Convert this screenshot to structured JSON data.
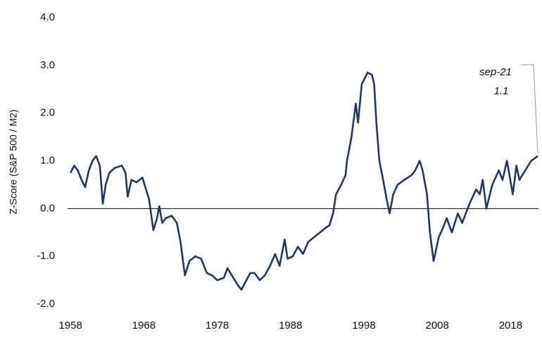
{
  "chart_data": {
    "type": "line",
    "y_label": "Z-Score (S&P 500 / M2)",
    "x": [
      1958.0,
      1958.5,
      1959.0,
      1959.5,
      1960.0,
      1960.5,
      1961.0,
      1961.5,
      1962.0,
      1962.4,
      1962.8,
      1963.3,
      1964.0,
      1965.0,
      1965.5,
      1965.8,
      1966.3,
      1967.0,
      1967.8,
      1968.3,
      1968.7,
      1969.3,
      1969.8,
      1970.1,
      1970.5,
      1971.0,
      1971.8,
      1972.5,
      1973.0,
      1973.6,
      1974.2,
      1975.0,
      1975.8,
      1976.6,
      1977.3,
      1978.0,
      1978.9,
      1979.4,
      1980.2,
      1980.8,
      1981.3,
      1981.8,
      1982.5,
      1983.1,
      1983.8,
      1984.5,
      1985.2,
      1985.9,
      1986.5,
      1987.2,
      1987.6,
      1988.3,
      1989.0,
      1989.7,
      1990.4,
      1991.2,
      1992.0,
      1992.8,
      1993.3,
      1993.8,
      1994.2,
      1994.9,
      1995.5,
      1995.7,
      1996.3,
      1996.9,
      1997.2,
      1997.7,
      1998.5,
      1999.1,
      1999.4,
      1999.7,
      2000.1,
      2000.5,
      2001.1,
      2001.5,
      2002.0,
      2002.6,
      2003.5,
      2004.5,
      2005.0,
      2005.6,
      2006.0,
      2006.6,
      2007.0,
      2007.5,
      2008.2,
      2008.8,
      2009.3,
      2010.0,
      2010.8,
      2011.4,
      2012.4,
      2013.3,
      2013.8,
      2014.2,
      2014.7,
      2015.5,
      2016.4,
      2016.9,
      2017.5,
      2018.3,
      2018.8,
      2019.2,
      2020.0,
      2020.8,
      2021.7
    ],
    "series": [
      {
        "name": "Z-Score",
        "color": "#1f3864",
        "values": [
          0.75,
          0.9,
          0.8,
          0.6,
          0.45,
          0.8,
          1.0,
          1.1,
          0.9,
          0.1,
          0.5,
          0.75,
          0.85,
          0.9,
          0.75,
          0.25,
          0.6,
          0.55,
          0.65,
          0.4,
          0.2,
          -0.45,
          -0.2,
          0.05,
          -0.3,
          -0.2,
          -0.15,
          -0.3,
          -0.7,
          -1.4,
          -1.1,
          -1.0,
          -1.05,
          -1.35,
          -1.4,
          -1.5,
          -1.45,
          -1.25,
          -1.45,
          -1.6,
          -1.7,
          -1.55,
          -1.35,
          -1.35,
          -1.5,
          -1.4,
          -1.2,
          -0.95,
          -1.2,
          -0.65,
          -1.05,
          -1.0,
          -0.8,
          -0.95,
          -0.7,
          -0.6,
          -0.5,
          -0.4,
          -0.35,
          -0.1,
          0.3,
          0.5,
          0.7,
          1.0,
          1.5,
          2.2,
          1.8,
          2.6,
          2.85,
          2.8,
          2.6,
          1.8,
          1.0,
          0.7,
          0.2,
          -0.1,
          0.3,
          0.5,
          0.6,
          0.7,
          0.8,
          1.0,
          0.8,
          0.3,
          -0.5,
          -1.1,
          -0.6,
          -0.4,
          -0.2,
          -0.5,
          -0.1,
          -0.3,
          0.1,
          0.4,
          0.3,
          0.6,
          0.0,
          0.5,
          0.8,
          0.6,
          1.0,
          0.3,
          0.9,
          0.6,
          0.8,
          1.0,
          1.1
        ]
      }
    ],
    "xlim": [
      1957.6,
      2021.8
    ],
    "xticks": [
      1958,
      1968,
      1978,
      1988,
      1998,
      2008,
      2018
    ],
    "ylim": [
      -2,
      4
    ],
    "yticks": [
      {
        "value": -2,
        "label": "-2.0"
      },
      {
        "value": -1,
        "label": "-1.0"
      },
      {
        "value": 0,
        "label": "0.0"
      },
      {
        "value": 1,
        "label": "1.0"
      },
      {
        "value": 2,
        "label": "2.0"
      },
      {
        "value": 3,
        "label": "3.0"
      },
      {
        "value": 4,
        "label": "4.0"
      }
    ],
    "hline": 0,
    "grid": false,
    "annotation": [
      "sep-21",
      "1.1"
    ]
  }
}
